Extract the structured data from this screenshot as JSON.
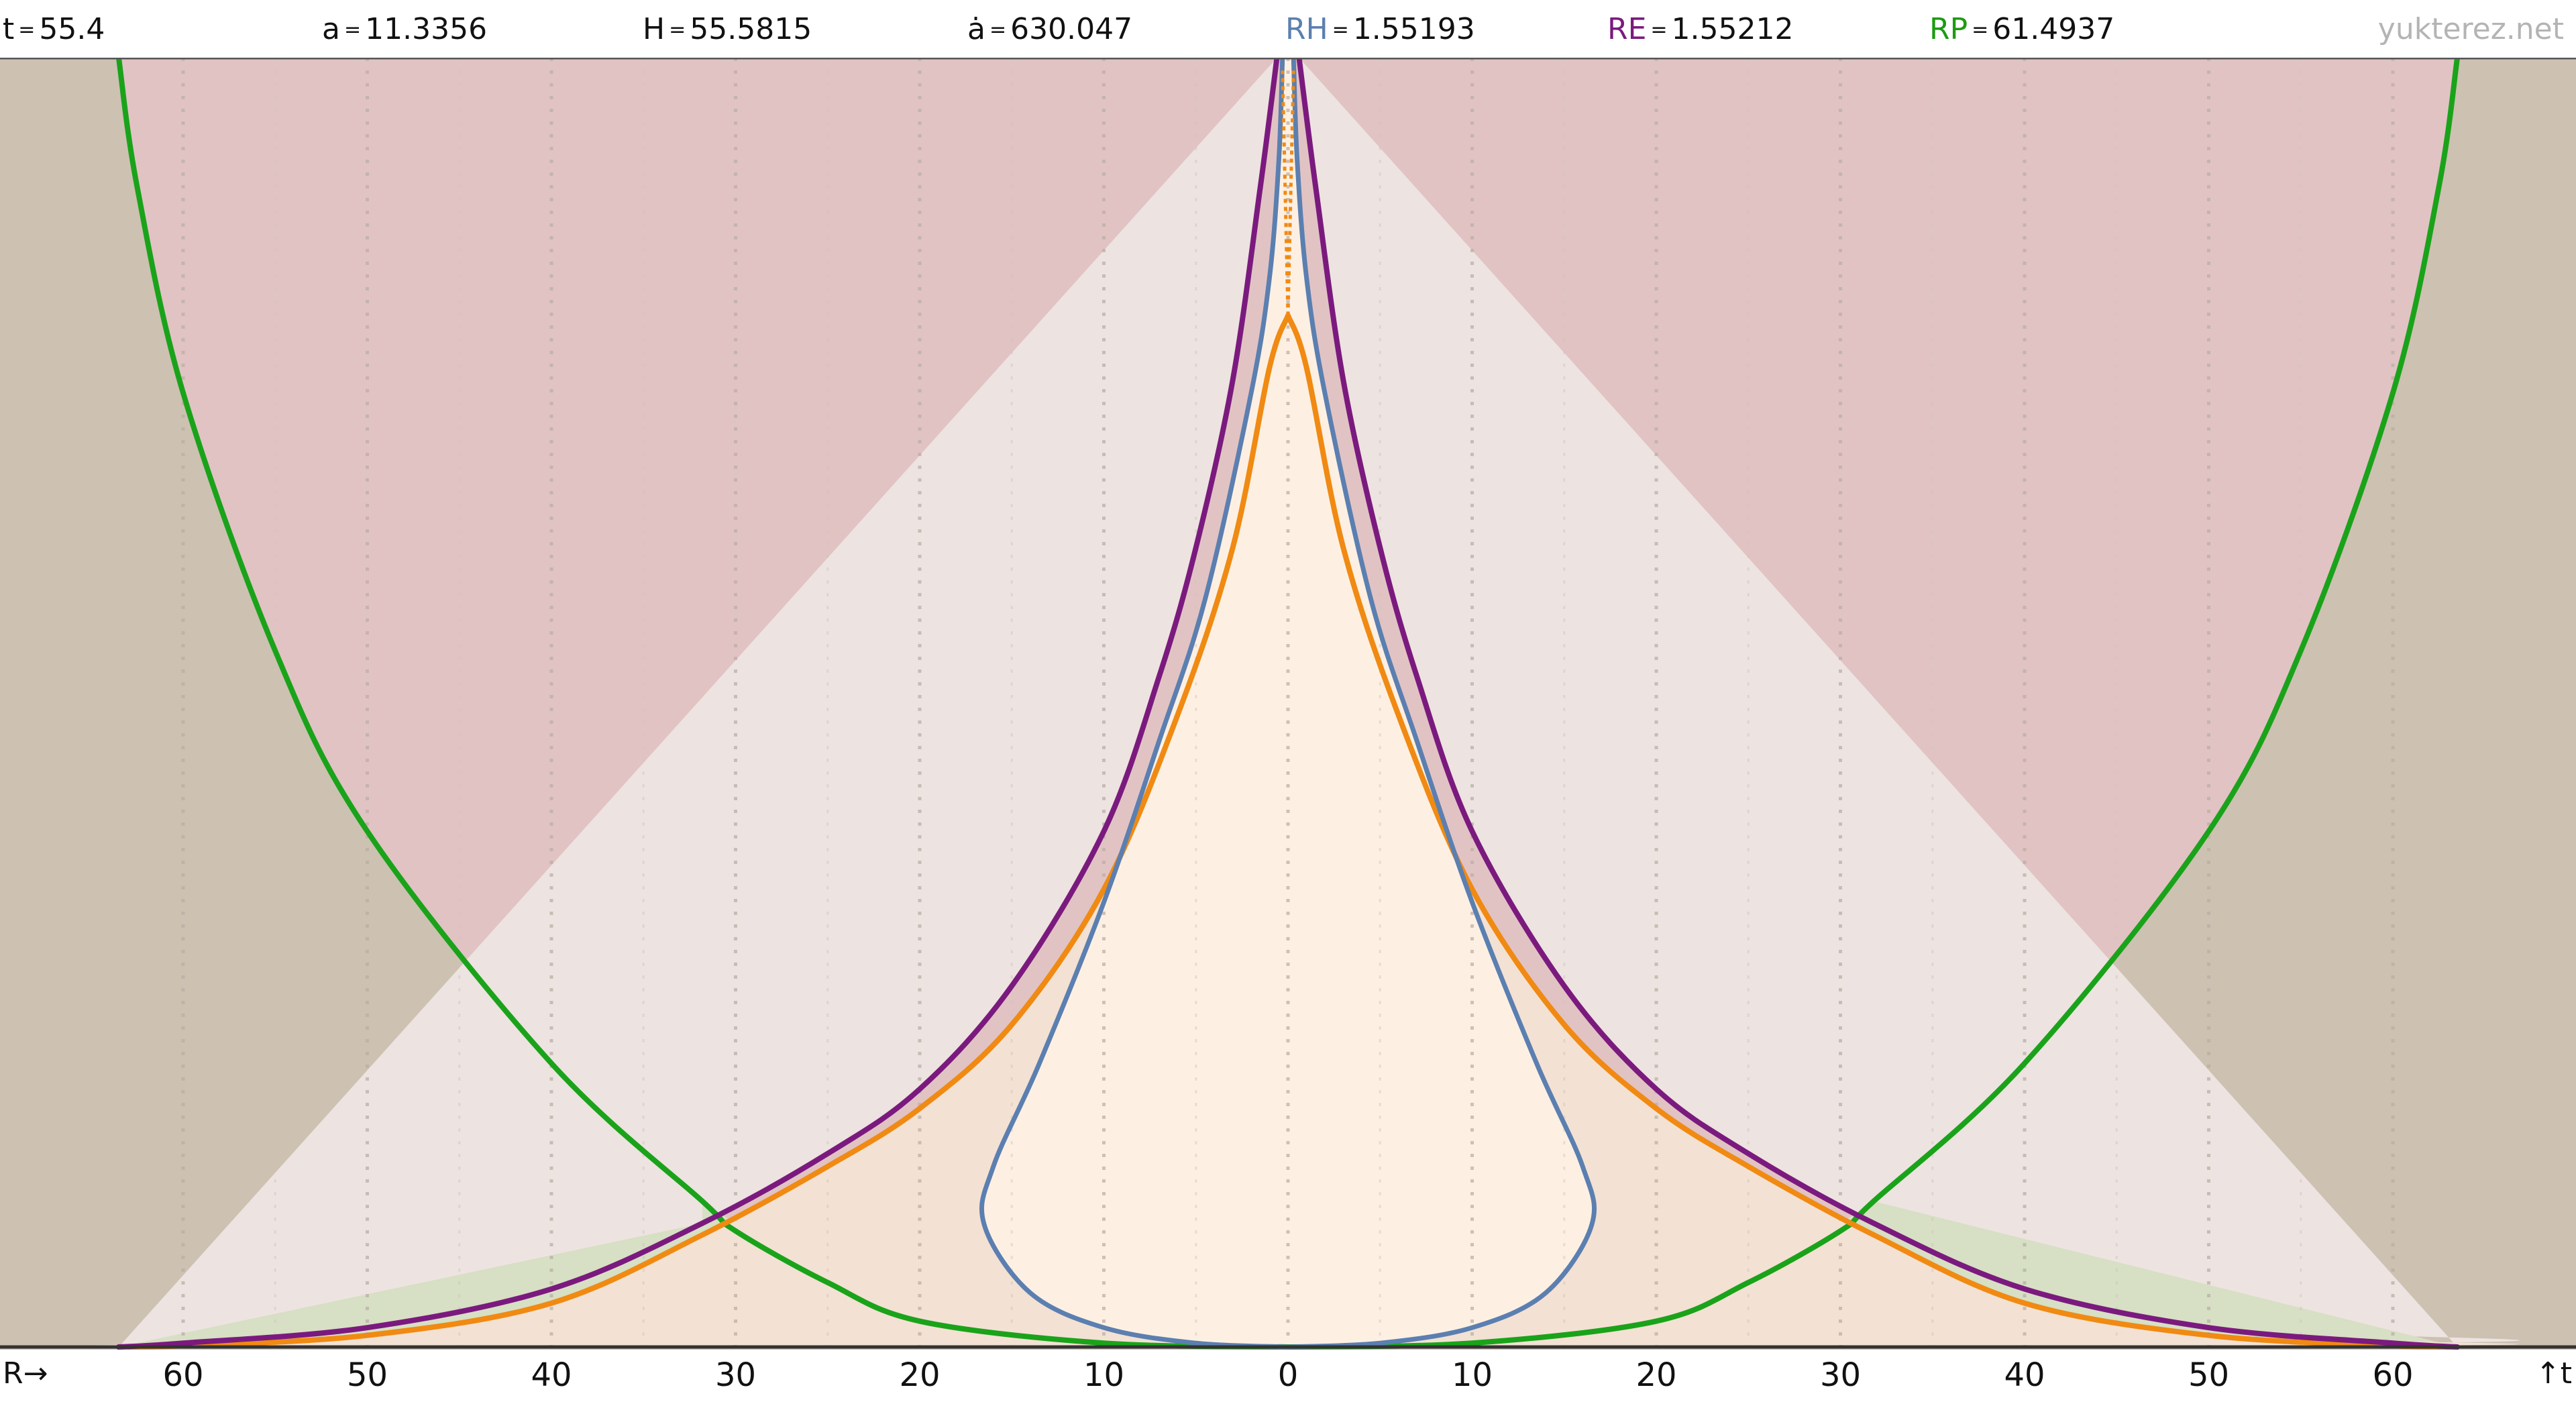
{
  "header": {
    "stats": [
      {
        "label": "t",
        "value": "55.4",
        "color": "#111111"
      },
      {
        "label": "a",
        "value": "11.3356",
        "color": "#111111"
      },
      {
        "label": "H",
        "value": "55.5815",
        "color": "#111111"
      },
      {
        "label": "ȧ",
        "value": "630.047",
        "color": "#111111"
      },
      {
        "label": "RH",
        "value": "1.55193",
        "color": "#5b7fb0"
      },
      {
        "label": "RE",
        "value": "1.55212",
        "color": "#7b1a7e"
      },
      {
        "label": "RP",
        "value": "61.4937",
        "color": "#1d9b12"
      }
    ],
    "equals": "=",
    "brand": "yukterez.net"
  },
  "footer": {
    "xaxis_label": "R→",
    "t_arrow": "↑t",
    "ticks": [
      "60",
      "50",
      "40",
      "30",
      "20",
      "10",
      "0",
      "10",
      "20",
      "30",
      "40",
      "50",
      "60"
    ]
  },
  "chart_data": {
    "type": "line",
    "x_ticks": [
      -60,
      -50,
      -40,
      -30,
      -20,
      -10,
      0,
      10,
      20,
      30,
      40,
      50,
      60
    ],
    "xlim": [
      -70,
      68
    ],
    "y_label": "t",
    "series": [
      {
        "name": "RP",
        "color": "#1aa31a",
        "points": [
          [
            0,
            0
          ],
          [
            10,
            0.3
          ],
          [
            20,
            2
          ],
          [
            25,
            5
          ],
          [
            30,
            9
          ],
          [
            31.8,
            11.3
          ],
          [
            40,
            22
          ],
          [
            50,
            40
          ],
          [
            55,
            54
          ],
          [
            60,
            74
          ],
          [
            62.5,
            90
          ],
          [
            63.5,
            100
          ]
        ]
      },
      {
        "name": "RE",
        "color": "#7b1a7e",
        "points": [
          [
            63.5,
            0
          ],
          [
            60,
            0.3
          ],
          [
            50,
            1.5
          ],
          [
            40,
            4.5
          ],
          [
            31.8,
            9.6
          ],
          [
            25,
            15
          ],
          [
            20,
            20
          ],
          [
            15,
            28
          ],
          [
            10,
            40
          ],
          [
            7,
            52
          ],
          [
            5,
            62
          ],
          [
            3,
            75
          ],
          [
            1.5,
            90
          ],
          [
            0.6,
            100
          ]
        ]
      },
      {
        "name": "orange",
        "color": "#f08a12",
        "points": [
          [
            63,
            0
          ],
          [
            60,
            0.1
          ],
          [
            50,
            0.9
          ],
          [
            40,
            3.4
          ],
          [
            31.8,
            8.7
          ],
          [
            25,
            14
          ],
          [
            20,
            18.5
          ],
          [
            15,
            25
          ],
          [
            10,
            35.5
          ],
          [
            6,
            49
          ],
          [
            3,
            62
          ],
          [
            1,
            76
          ],
          [
            0,
            80
          ]
        ]
      },
      {
        "name": "RH",
        "color": "#5b7fb0",
        "points": [
          [
            0,
            0
          ],
          [
            5,
            0.3
          ],
          [
            10,
            1.5
          ],
          [
            14,
            4.2
          ],
          [
            16.5,
            9.5
          ],
          [
            16,
            14
          ],
          [
            13.5,
            22
          ],
          [
            10,
            34.5
          ],
          [
            7,
            47
          ],
          [
            4.5,
            58
          ],
          [
            2,
            74
          ],
          [
            1,
            83
          ],
          [
            0.5,
            92
          ],
          [
            0.3,
            100
          ]
        ]
      }
    ]
  }
}
